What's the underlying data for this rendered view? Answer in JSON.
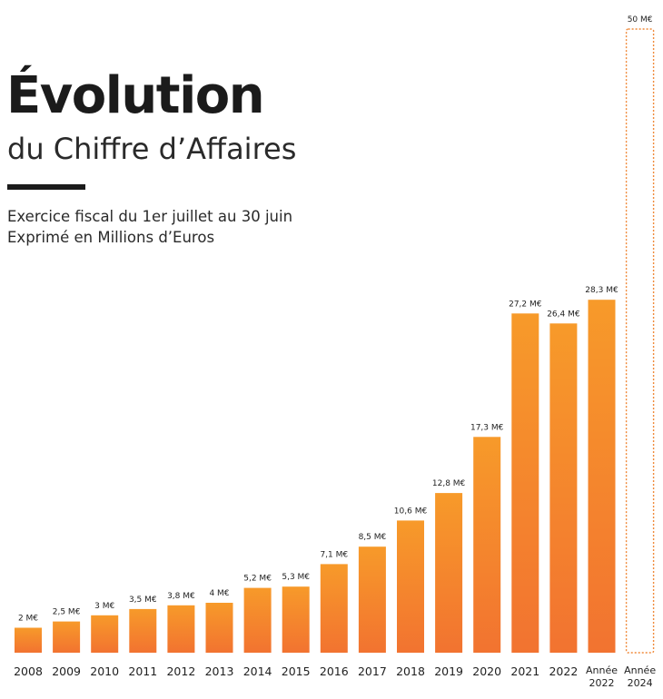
{
  "header": {
    "title": "Évolution",
    "subtitle": "du Chiffre d’Affaires",
    "description_line1": "Exercice fiscal du 1er juillet au 30 juin",
    "description_line2": "Exprimé en Millions d’Euros"
  },
  "colors": {
    "bar_top": "#f79a2a",
    "bar_bottom": "#f27330",
    "target_outline": "#f08a3a",
    "text": "#1f1f1f"
  },
  "chart_data": {
    "type": "bar",
    "unit": "M€",
    "categories": [
      [
        "2008"
      ],
      [
        "2009"
      ],
      [
        "2010"
      ],
      [
        "2011"
      ],
      [
        "2012"
      ],
      [
        "2013"
      ],
      [
        "2014"
      ],
      [
        "2015"
      ],
      [
        "2016"
      ],
      [
        "2017"
      ],
      [
        "2018"
      ],
      [
        "2019"
      ],
      [
        "2020"
      ],
      [
        "2021"
      ],
      [
        "2022"
      ],
      [
        "Année",
        "2022"
      ],
      [
        "Année",
        "2024"
      ]
    ],
    "values": [
      2,
      2.5,
      3,
      3.5,
      3.8,
      4,
      5.2,
      5.3,
      7.1,
      8.5,
      10.6,
      12.8,
      17.3,
      27.2,
      26.4,
      28.3,
      50
    ],
    "value_labels": [
      "2 M€",
      "2,5 M€",
      "3 M€",
      "3,5 M€",
      "3,8 M€",
      "4 M€",
      "5,2 M€",
      "5,3 M€",
      "7,1 M€",
      "8,5 M€",
      "10,6 M€",
      "12,8 M€",
      "17,3 M€",
      "27,2 M€",
      "26,4 M€",
      "28,3 M€",
      "50 M€"
    ],
    "projected": [
      false,
      false,
      false,
      false,
      false,
      false,
      false,
      false,
      false,
      false,
      false,
      false,
      false,
      false,
      false,
      false,
      true
    ],
    "ylim": [
      0,
      50
    ],
    "grid": false,
    "xlabel": "",
    "ylabel": ""
  }
}
